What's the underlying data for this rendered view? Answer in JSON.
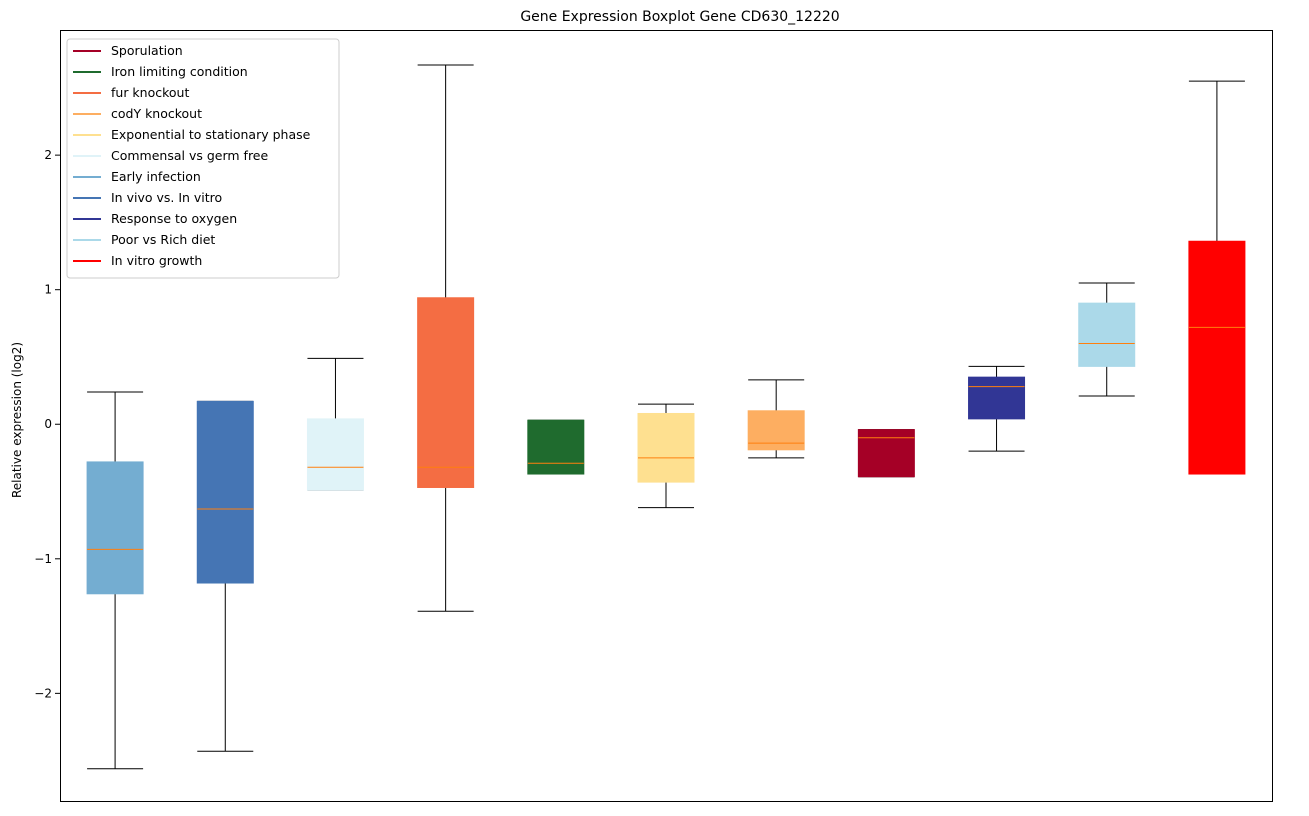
{
  "chart_data": {
    "type": "boxplot",
    "title": "Gene Expression Boxplot Gene CD630_12220",
    "xlabel": "",
    "ylabel": "Relative expression (log2)",
    "ylim": [
      -2.8,
      2.93
    ],
    "yticks": [
      {
        "value": -2,
        "label": "−2"
      },
      {
        "value": -1,
        "label": "−1"
      },
      {
        "value": 0,
        "label": "0"
      },
      {
        "value": 1,
        "label": "1"
      },
      {
        "value": 2,
        "label": "2"
      }
    ],
    "median_color": "#ff7f0e",
    "legend": {
      "placement": "top-left",
      "entries": [
        {
          "label": "Sporulation",
          "color": "#a50026"
        },
        {
          "label": "Iron limiting condition",
          "color": "#1f6b2e"
        },
        {
          "label": "fur knockout",
          "color": "#f46d43"
        },
        {
          "label": "codY knockout",
          "color": "#fdae61"
        },
        {
          "label": "Exponential to stationary phase",
          "color": "#fee090"
        },
        {
          "label": "Commensal vs germ free",
          "color": "#e0f3f8"
        },
        {
          "label": "Early infection",
          "color": "#74add1"
        },
        {
          "label": "In vivo vs. In vitro",
          "color": "#4575b4"
        },
        {
          "label": "Response to oxygen",
          "color": "#313695"
        },
        {
          "label": "Poor vs Rich diet",
          "color": "#abd9e9"
        },
        {
          "label": "In vitro growth",
          "color": "#ff0000"
        }
      ]
    },
    "boxes": [
      {
        "name": "Early infection",
        "color": "#74add1",
        "whisker_low": -2.56,
        "q1": -1.26,
        "median": -0.93,
        "q3": -0.28,
        "whisker_high": 0.24
      },
      {
        "name": "In vivo vs. In vitro",
        "color": "#4575b4",
        "whisker_low": -2.43,
        "q1": -1.18,
        "median": -0.63,
        "q3": 0.17,
        "whisker_high": 0.17
      },
      {
        "name": "Commensal vs germ free",
        "color": "#e0f3f8",
        "whisker_low": -0.49,
        "q1": -0.49,
        "median": -0.32,
        "q3": 0.04,
        "whisker_high": 0.49
      },
      {
        "name": "fur knockout",
        "color": "#f46d43",
        "whisker_low": -1.39,
        "q1": -0.47,
        "median": -0.32,
        "q3": 0.94,
        "whisker_high": 2.67
      },
      {
        "name": "Iron limiting condition",
        "color": "#1f6b2e",
        "whisker_low": -0.37,
        "q1": -0.37,
        "median": -0.29,
        "q3": 0.03,
        "whisker_high": 0.03
      },
      {
        "name": "Exponential to stationary phase",
        "color": "#fee090",
        "whisker_low": -0.62,
        "q1": -0.43,
        "median": -0.25,
        "q3": 0.08,
        "whisker_high": 0.15
      },
      {
        "name": "codY knockout",
        "color": "#fdae61",
        "whisker_low": -0.25,
        "q1": -0.19,
        "median": -0.14,
        "q3": 0.1,
        "whisker_high": 0.33
      },
      {
        "name": "Sporulation",
        "color": "#a50026",
        "whisker_low": -0.39,
        "q1": -0.39,
        "median": -0.1,
        "q3": -0.04,
        "whisker_high": -0.04
      },
      {
        "name": "Response to oxygen",
        "color": "#313695",
        "whisker_low": -0.2,
        "q1": 0.04,
        "median": 0.28,
        "q3": 0.35,
        "whisker_high": 0.43
      },
      {
        "name": "Poor vs Rich diet",
        "color": "#abd9e9",
        "whisker_low": 0.21,
        "q1": 0.43,
        "median": 0.6,
        "q3": 0.9,
        "whisker_high": 1.05
      },
      {
        "name": "In vitro growth",
        "color": "#ff0000",
        "whisker_low": -0.37,
        "q1": -0.37,
        "median": 0.72,
        "q3": 1.36,
        "whisker_high": 2.55
      }
    ]
  }
}
